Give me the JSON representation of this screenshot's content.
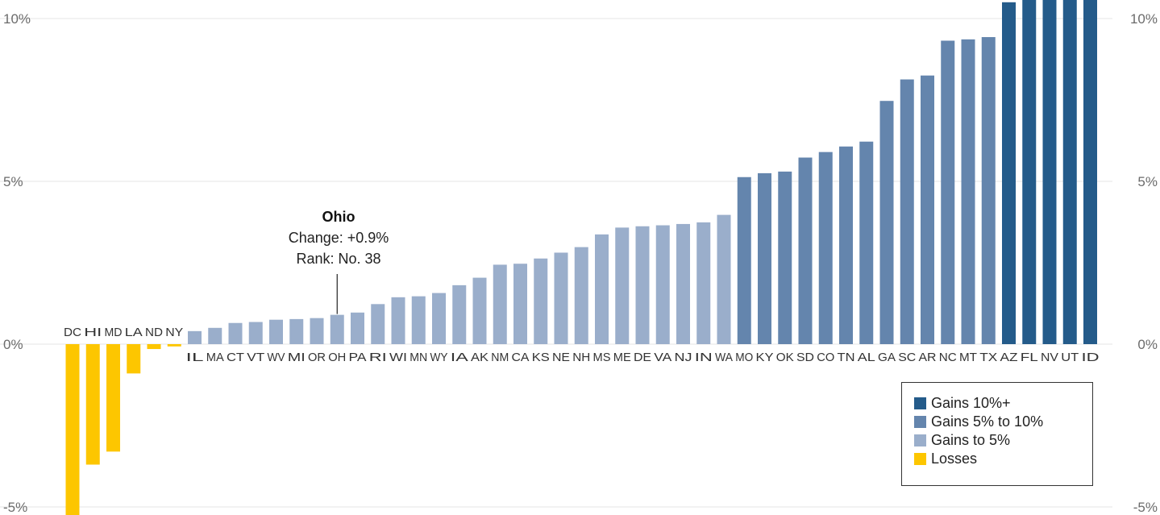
{
  "chart_data": {
    "type": "bar",
    "ylim": [
      -5,
      10.5
    ],
    "y_ticks": [
      {
        "value": -5,
        "label": "-5%"
      },
      {
        "value": 0,
        "label": "0%"
      },
      {
        "value": 5,
        "label": "5%"
      },
      {
        "value": 10,
        "label": "10%"
      }
    ],
    "grid": true,
    "categories": [
      "DC",
      "HI",
      "MD",
      "LA",
      "ND",
      "NY",
      "IL",
      "MA",
      "CT",
      "VT",
      "WV",
      "MI",
      "OR",
      "OH",
      "PA",
      "RI",
      "WI",
      "MN",
      "WY",
      "IA",
      "AK",
      "NM",
      "CA",
      "KS",
      "NE",
      "NH",
      "MS",
      "ME",
      "DE",
      "VA",
      "NJ",
      "IN",
      "WA",
      "MO",
      "KY",
      "OK",
      "SD",
      "CO",
      "TN",
      "AL",
      "GA",
      "SC",
      "AR",
      "NC",
      "MT",
      "TX",
      "AZ",
      "FL",
      "NV",
      "UT",
      "ID"
    ],
    "values": [
      -5.3,
      -3.7,
      -3.3,
      -0.9,
      -0.15,
      -0.07,
      0.4,
      0.5,
      0.65,
      0.68,
      0.75,
      0.77,
      0.8,
      0.9,
      0.97,
      1.23,
      1.44,
      1.47,
      1.57,
      1.81,
      2.04,
      2.44,
      2.47,
      2.63,
      2.81,
      2.98,
      3.37,
      3.58,
      3.62,
      3.65,
      3.69,
      3.74,
      3.97,
      5.13,
      5.25,
      5.3,
      5.73,
      5.9,
      6.07,
      6.22,
      7.47,
      8.13,
      8.25,
      9.32,
      9.36,
      9.43,
      10.5,
      10.7,
      10.7,
      10.7,
      10.7
    ],
    "groups": [
      "Losses",
      "Losses",
      "Losses",
      "Losses",
      "Losses",
      "Losses",
      "Gains to 5%",
      "Gains to 5%",
      "Gains to 5%",
      "Gains to 5%",
      "Gains to 5%",
      "Gains to 5%",
      "Gains to 5%",
      "Gains to 5%",
      "Gains to 5%",
      "Gains to 5%",
      "Gains to 5%",
      "Gains to 5%",
      "Gains to 5%",
      "Gains to 5%",
      "Gains to 5%",
      "Gains to 5%",
      "Gains to 5%",
      "Gains to 5%",
      "Gains to 5%",
      "Gains to 5%",
      "Gains to 5%",
      "Gains to 5%",
      "Gains to 5%",
      "Gains to 5%",
      "Gains to 5%",
      "Gains to 5%",
      "Gains to 5%",
      "Gains 5% to 10%",
      "Gains 5% to 10%",
      "Gains 5% to 10%",
      "Gains 5% to 10%",
      "Gains 5% to 10%",
      "Gains 5% to 10%",
      "Gains 5% to 10%",
      "Gains 5% to 10%",
      "Gains 5% to 10%",
      "Gains 5% to 10%",
      "Gains 5% to 10%",
      "Gains 5% to 10%",
      "Gains 5% to 10%",
      "Gains 10%+",
      "Gains 10%+",
      "Gains 10%+",
      "Gains 10%+",
      "Gains 10%+"
    ],
    "colors": {
      "Gains 10%+": "#245b8a",
      "Gains 5% to 10%": "#6485ad",
      "Gains to 5%": "#9aaecb",
      "Losses": "#fdc600"
    },
    "legend": {
      "placement": "bottom-right",
      "entries": [
        "Gains 10%+",
        "Gains 5% to 10%",
        "Gains to 5%",
        "Losses"
      ]
    },
    "annotation": {
      "category": "OH",
      "title": "Ohio",
      "lines": [
        "Change: +0.9%",
        "Rank: No. 38"
      ]
    }
  }
}
